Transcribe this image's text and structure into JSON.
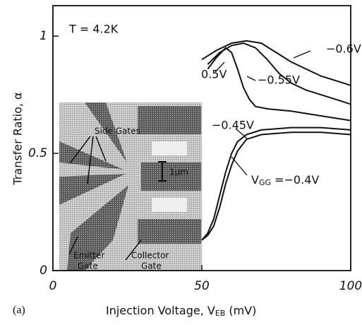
{
  "chart_data": {
    "type": "line",
    "x_label": [
      "Injection Voltage, V",
      "EB",
      " (mV)"
    ],
    "y_label": "Transfer Ratio, α",
    "panel_label": "(a)",
    "annotations": [
      "T = 4.2K",
      "Side Gates",
      "1μm",
      "Emitter",
      "Gate",
      "Collector",
      "Gate"
    ],
    "vgg_label": [
      "V",
      "GG",
      " ="
    ],
    "xlim": [
      0,
      100
    ],
    "ylim": [
      0,
      1.13
    ],
    "xticks": [
      0,
      50,
      100
    ],
    "yticks": [
      0,
      0.5,
      1
    ],
    "series": [
      {
        "name": "−0.6V",
        "color": "#111111",
        "x": [
          50,
          55,
          60,
          65,
          70,
          75,
          80,
          85,
          90,
          95,
          100
        ],
        "values": [
          0.9,
          0.94,
          0.97,
          0.98,
          0.97,
          0.93,
          0.89,
          0.86,
          0.83,
          0.81,
          0.79
        ]
      },
      {
        "name": "−0.55V",
        "color": "#111111",
        "x": [
          52,
          56,
          60,
          64,
          68,
          72,
          76,
          80,
          85,
          90,
          95,
          100
        ],
        "values": [
          0.88,
          0.93,
          0.96,
          0.97,
          0.95,
          0.9,
          0.84,
          0.8,
          0.77,
          0.75,
          0.73,
          0.71
        ]
      },
      {
        "name": "0.5V",
        "color": "#111111",
        "x": [
          52,
          55,
          58,
          60,
          62,
          64,
          66,
          68,
          72,
          80,
          90,
          100
        ],
        "values": [
          0.86,
          0.91,
          0.95,
          0.93,
          0.86,
          0.78,
          0.73,
          0.7,
          0.69,
          0.68,
          0.66,
          0.64
        ]
      },
      {
        "name": "−0.45V",
        "color": "#111111",
        "x": [
          50,
          52,
          54,
          56,
          58,
          60,
          62,
          65,
          70,
          80,
          90,
          100
        ],
        "values": [
          0.13,
          0.16,
          0.22,
          0.32,
          0.42,
          0.5,
          0.55,
          0.58,
          0.6,
          0.61,
          0.61,
          0.6
        ]
      },
      {
        "name": "−0.4V",
        "color": "#111111",
        "x": [
          50,
          52,
          54,
          56,
          58,
          60,
          62,
          65,
          70,
          80,
          90,
          100
        ],
        "values": [
          0.13,
          0.15,
          0.19,
          0.27,
          0.37,
          0.45,
          0.51,
          0.56,
          0.58,
          0.59,
          0.59,
          0.58
        ]
      }
    ]
  }
}
